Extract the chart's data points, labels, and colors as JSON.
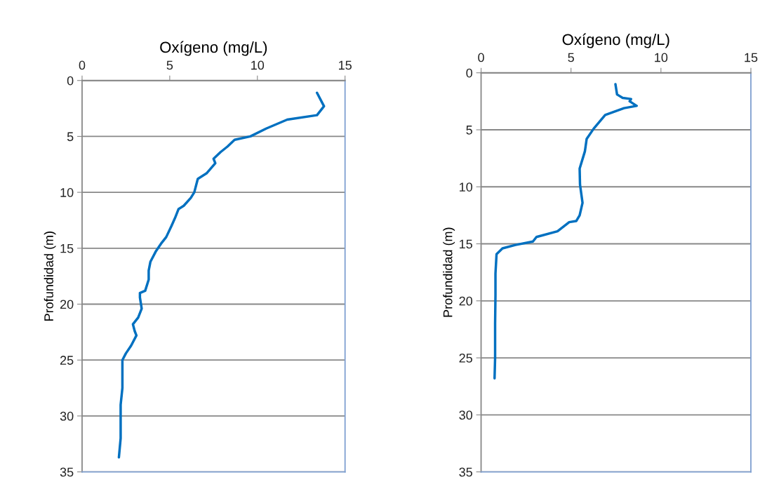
{
  "chart_data": [
    {
      "type": "line",
      "xlabel": "Oxígeno (mg/L)",
      "ylabel": "Profundidad (m)",
      "xlim": [
        0,
        15
      ],
      "xticks": [
        0,
        5,
        10,
        15
      ],
      "ylim": [
        35,
        0
      ],
      "yticks": [
        0,
        5,
        10,
        15,
        20,
        25,
        30,
        35
      ],
      "grid": "y",
      "marker": "none",
      "line_style": "solid",
      "series": [
        {
          "color": "#0070c0",
          "x": [
            13.4,
            13.7,
            13.8,
            13.4,
            11.7,
            10.5,
            9.6,
            8.7,
            8.3,
            7.9,
            7.5,
            7.6,
            7.1,
            6.6,
            6.4,
            6.2,
            5.8,
            5.5,
            5.3,
            5.1,
            4.8,
            4.5,
            4.2,
            3.9,
            3.8,
            3.8,
            3.6,
            3.3,
            3.3,
            3.4,
            3.2,
            2.9,
            3.0,
            3.1,
            2.8,
            2.5,
            2.3,
            2.3,
            2.3,
            2.2,
            2.2,
            2.2,
            2.1
          ],
          "values": [
            1.1,
            2.0,
            2.3,
            3.1,
            3.5,
            4.3,
            5.0,
            5.3,
            5.9,
            6.4,
            7.0,
            7.4,
            8.3,
            8.8,
            10.0,
            10.5,
            11.2,
            11.5,
            12.3,
            13.0,
            14.0,
            14.6,
            15.3,
            16.2,
            17.0,
            17.8,
            18.8,
            19.0,
            19.4,
            20.4,
            21.2,
            21.8,
            22.4,
            22.8,
            23.7,
            24.4,
            25.0,
            26.0,
            27.5,
            29.0,
            30.5,
            32.0,
            33.7
          ]
        }
      ]
    },
    {
      "type": "line",
      "xlabel": "Oxígeno (mg/L)",
      "ylabel": "Profundidad (m)",
      "xlim": [
        0,
        15
      ],
      "xticks": [
        0,
        5,
        10,
        15
      ],
      "ylim": [
        35,
        0
      ],
      "yticks": [
        0,
        5,
        10,
        15,
        20,
        25,
        30,
        35
      ],
      "grid": "y",
      "marker": "none",
      "line_style": "solid",
      "series": [
        {
          "color": "#0070c0",
          "x": [
            7.47,
            7.56,
            7.87,
            8.34,
            8.26,
            8.65,
            7.95,
            6.9,
            6.26,
            5.87,
            5.77,
            5.48,
            5.5,
            5.64,
            5.48,
            5.29,
            4.9,
            4.25,
            3.08,
            2.88,
            1.91,
            1.19,
            0.86,
            0.8,
            0.8,
            0.78,
            0.78,
            0.75
          ],
          "values": [
            1.0,
            1.9,
            2.2,
            2.3,
            2.5,
            2.9,
            3.1,
            3.7,
            4.9,
            5.8,
            6.9,
            8.4,
            9.8,
            11.4,
            12.5,
            13.0,
            13.1,
            13.9,
            14.4,
            14.8,
            15.1,
            15.4,
            15.9,
            17.6,
            19.5,
            22.0,
            25.0,
            26.8
          ]
        }
      ]
    }
  ]
}
